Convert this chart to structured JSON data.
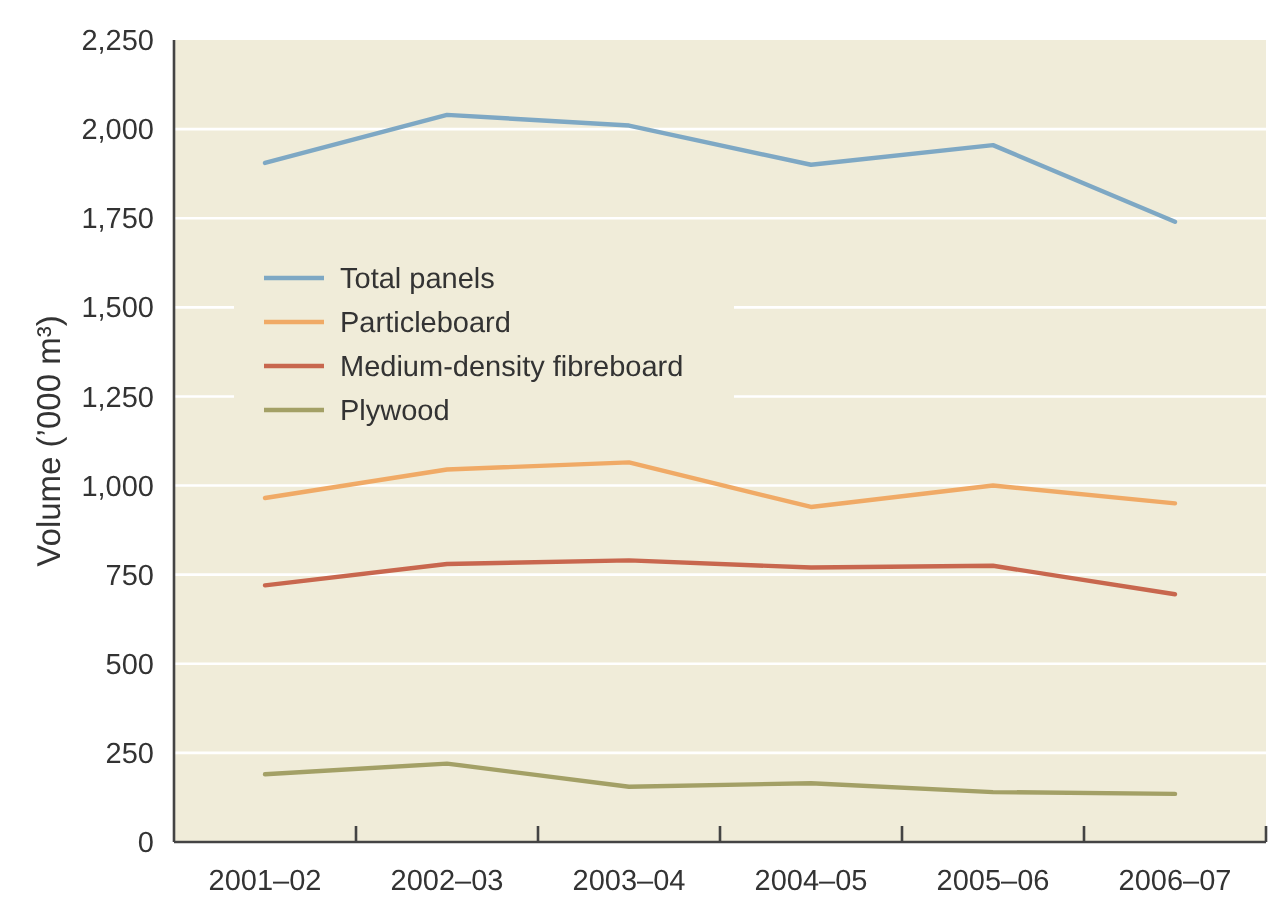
{
  "chart_data": {
    "type": "line",
    "ylabel": "Volume (’000 m³)",
    "categories": [
      "2001–02",
      "2002–03",
      "2003–04",
      "2004–05",
      "2005–06",
      "2006–07"
    ],
    "series": [
      {
        "name": "Total panels",
        "color": "#7ea8c4",
        "values": [
          1905,
          2040,
          2010,
          1900,
          1955,
          1740
        ]
      },
      {
        "name": "Particleboard",
        "color": "#f0aa66",
        "values": [
          965,
          1045,
          1065,
          940,
          1000,
          950
        ]
      },
      {
        "name": "Medium-density fibreboard",
        "color": "#c8674e",
        "values": [
          720,
          780,
          790,
          770,
          775,
          695
        ]
      },
      {
        "name": "Plywood",
        "color": "#a3a066",
        "values": [
          190,
          220,
          155,
          165,
          140,
          135
        ]
      }
    ],
    "ylim": [
      0,
      2250
    ],
    "yticks": [
      0,
      250,
      500,
      750,
      {
        "value": 1000,
        "label": "1,000"
      },
      {
        "value": 1250,
        "label": "1,250"
      },
      {
        "value": 1500,
        "label": "1,500"
      },
      {
        "value": 1750,
        "label": "1,750"
      },
      {
        "value": 2000,
        "label": "2,000"
      },
      {
        "value": 2250,
        "label": "2,250"
      }
    ],
    "grid": "y",
    "legend": "top left"
  }
}
